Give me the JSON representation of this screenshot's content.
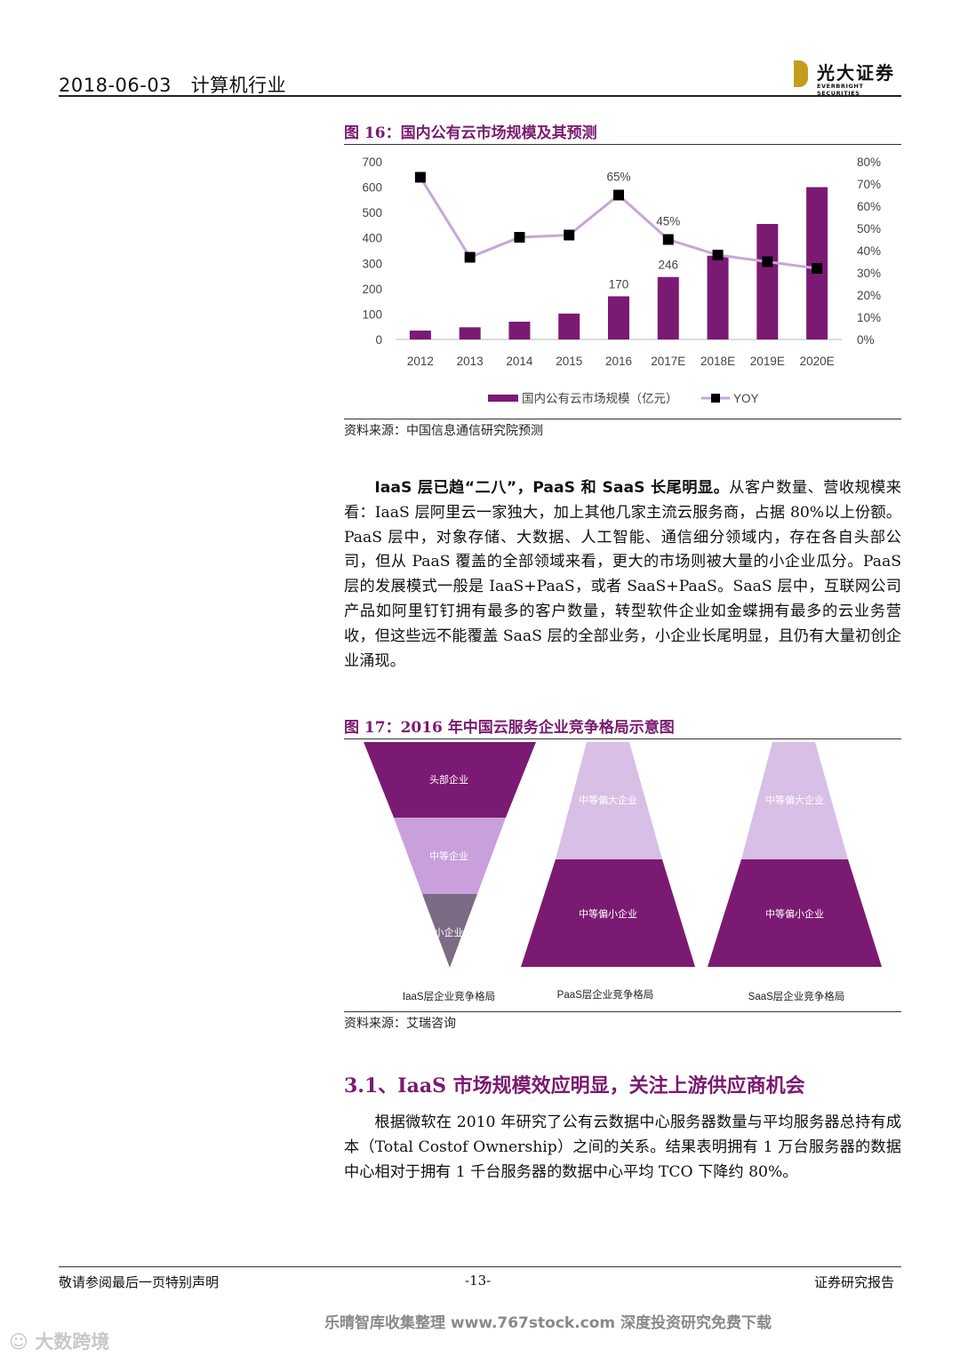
{
  "header": {
    "date": "2018-06-03",
    "industry": "计算机行业",
    "logo_cn": "光大证券",
    "logo_en": "EVERBRIGHT SECURITIES"
  },
  "figure16": {
    "title": "图 16：国内公有云市场规模及其预测",
    "source": "资料来源：中国信息通信研究院预测"
  },
  "chart_data": {
    "type": "bar",
    "categories": [
      "2012",
      "2013",
      "2014",
      "2015",
      "2016",
      "2017E",
      "2018E",
      "2019E",
      "2020E"
    ],
    "series": [
      {
        "name": "国内公有云市场规模（亿元）",
        "type": "bar",
        "axis": "left",
        "values": [
          35,
          48,
          70,
          102,
          170,
          246,
          330,
          455,
          600
        ]
      },
      {
        "name": "YOY",
        "type": "line",
        "axis": "right",
        "values": [
          0.73,
          0.37,
          0.46,
          0.47,
          0.65,
          0.45,
          0.38,
          0.35,
          0.32
        ]
      }
    ],
    "data_labels": [
      {
        "category": "2016",
        "text": "170",
        "series": "bar"
      },
      {
        "category": "2017E",
        "text": "246",
        "series": "bar"
      },
      {
        "category": "2016",
        "text": "65%",
        "series": "line"
      },
      {
        "category": "2017E",
        "text": "45%",
        "series": "line"
      }
    ],
    "ylim_left": [
      0,
      700
    ],
    "yticks_left": [
      "700",
      "600",
      "500",
      "400",
      "300",
      "200",
      "100",
      "0"
    ],
    "ylim_right": [
      0,
      0.8
    ],
    "yticks_right": [
      "80%",
      "70%",
      "60%",
      "50%",
      "40%",
      "30%",
      "20%",
      "10%",
      "0%"
    ],
    "legend_position": "bottom",
    "colors": {
      "bar": "#7b1a72",
      "line": "#c7a7d6",
      "marker": "#000000"
    },
    "grid": false
  },
  "paragraph1": {
    "bold": "IaaS 层已趋“二八”，PaaS 和 SaaS 长尾明显。",
    "text": "从客户数量、营收规模来看：IaaS 层阿里云一家独大，加上其他几家主流云服务商，占据 80%以上份额。PaaS 层中，对象存储、大数据、人工智能、通信细分领域内，存在各自头部公司，但从 PaaS 覆盖的全部领域来看，更大的市场则被大量的小企业瓜分。PaaS 层的发展模式一般是 IaaS+PaaS，或者 SaaS+PaaS。SaaS 层中，互联网公司产品如阿里钉钉拥有最多的客户数量，转型软件企业如金蝶拥有最多的云业务营收，但这些远不能覆盖 SaaS 层的全部业务，小企业长尾明显，且仍有大量初创企业涌现。"
  },
  "figure17": {
    "title": "图 17：2016 年中国云服务企业竞争格局示意图",
    "source": "资料来源：艾瑞咨询",
    "iaas": {
      "top": "头部企业",
      "mid": "中等企业",
      "small": "小企业",
      "caption": "IaaS层企业竞争格局"
    },
    "paas": {
      "upper": "中等偏大企业",
      "lower": "中等偏小企业",
      "caption": "PaaS层企业竞争格局"
    },
    "saas": {
      "upper": "中等偏大企业",
      "lower": "中等偏小企业",
      "caption": "SaaS层企业竞争格局"
    },
    "colors": {
      "dark": "#7b1a72",
      "mid": "#c9a0dc",
      "light": "#d8bfe6",
      "grey": "#7d6b85"
    }
  },
  "section": {
    "title": "3.1、IaaS 市场规模效应明显，关注上游供应商机会",
    "text": "根据微软在 2010 年研究了公有云数据中心服务器数量与平均服务器总持有成本（Total Costof Ownership）之间的关系。结果表明拥有 1 万台服务器的数据中心相对于拥有 1 千台服务器的数据中心平均 TCO 下降约 80%。"
  },
  "footer": {
    "left": "敬请参阅最后一页特别声明",
    "page": "-13-",
    "right": "证券研究报告"
  },
  "watermark": {
    "text": "乐晴智库收集整理 www.767stock.com 深度投资研究免费下载",
    "brand": "大数跨境"
  }
}
